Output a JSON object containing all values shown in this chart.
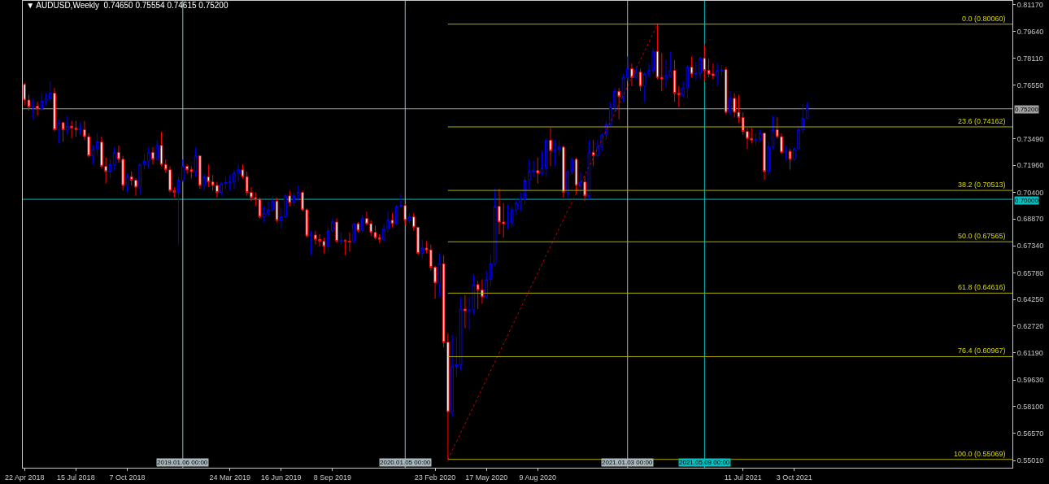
{
  "chart_data": {
    "type": "candlestick",
    "title": "▼ AUDUSD,Weekly  0.74650 0.75554 0.74615 0.75200",
    "x": [
      "2018-04-22",
      "2018-04-29",
      "2018-05-06",
      "2018-05-13",
      "2018-05-20",
      "2018-05-27",
      "2018-06-03",
      "2018-06-10",
      "2018-06-17",
      "2018-06-24",
      "2018-07-01",
      "2018-07-08",
      "2018-07-15",
      "2018-07-22",
      "2018-07-29",
      "2018-08-05",
      "2018-08-12",
      "2018-08-19",
      "2018-08-26",
      "2018-09-02",
      "2018-09-09",
      "2018-09-16",
      "2018-09-23",
      "2018-09-30",
      "2018-10-07",
      "2018-10-14",
      "2018-10-21",
      "2018-10-28",
      "2018-11-04",
      "2018-11-11",
      "2018-11-18",
      "2018-11-25",
      "2018-12-02",
      "2018-12-09",
      "2018-12-16",
      "2018-12-23",
      "2018-12-30",
      "2019-01-06",
      "2019-01-13",
      "2019-01-20",
      "2019-01-27",
      "2019-02-03",
      "2019-02-10",
      "2019-02-17",
      "2019-02-24",
      "2019-03-03",
      "2019-03-10",
      "2019-03-17",
      "2019-03-24",
      "2019-03-31",
      "2019-04-07",
      "2019-04-14",
      "2019-04-21",
      "2019-04-28",
      "2019-05-05",
      "2019-05-12",
      "2019-05-19",
      "2019-05-26",
      "2019-06-02",
      "2019-06-09",
      "2019-06-16",
      "2019-06-23",
      "2019-06-30",
      "2019-07-07",
      "2019-07-14",
      "2019-07-21",
      "2019-07-28",
      "2019-08-04",
      "2019-08-11",
      "2019-08-18",
      "2019-08-25",
      "2019-09-01",
      "2019-09-08",
      "2019-09-15",
      "2019-09-22",
      "2019-09-29",
      "2019-10-06",
      "2019-10-13",
      "2019-10-20",
      "2019-10-27",
      "2019-11-03",
      "2019-11-10",
      "2019-11-17",
      "2019-11-24",
      "2019-12-01",
      "2019-12-08",
      "2019-12-15",
      "2019-12-22",
      "2019-12-29",
      "2020-01-05",
      "2020-01-12",
      "2020-01-19",
      "2020-01-26",
      "2020-02-02",
      "2020-02-09",
      "2020-02-16",
      "2020-02-23",
      "2020-03-01",
      "2020-03-08",
      "2020-03-15",
      "2020-03-22",
      "2020-03-29",
      "2020-04-05",
      "2020-04-12",
      "2020-04-19",
      "2020-04-26",
      "2020-05-03",
      "2020-05-10",
      "2020-05-17",
      "2020-05-24",
      "2020-05-31",
      "2020-06-07",
      "2020-06-14",
      "2020-06-21",
      "2020-06-28",
      "2020-07-05",
      "2020-07-12",
      "2020-07-19",
      "2020-07-26",
      "2020-08-02",
      "2020-08-09",
      "2020-08-16",
      "2020-08-23",
      "2020-08-30",
      "2020-09-06",
      "2020-09-13",
      "2020-09-20",
      "2020-09-27",
      "2020-10-04",
      "2020-10-11",
      "2020-10-18",
      "2020-10-25",
      "2020-11-01",
      "2020-11-08",
      "2020-11-15",
      "2020-11-22",
      "2020-11-29",
      "2020-12-06",
      "2020-12-13",
      "2020-12-20",
      "2020-12-27",
      "2021-01-03",
      "2021-01-10",
      "2021-01-17",
      "2021-01-24",
      "2021-01-31",
      "2021-02-07",
      "2021-02-14",
      "2021-02-21",
      "2021-02-28",
      "2021-03-07",
      "2021-03-14",
      "2021-03-21",
      "2021-03-28",
      "2021-04-04",
      "2021-04-11",
      "2021-04-18",
      "2021-04-25",
      "2021-05-02",
      "2021-05-09",
      "2021-05-16",
      "2021-05-23",
      "2021-05-30",
      "2021-06-06",
      "2021-06-13",
      "2021-06-20",
      "2021-06-27",
      "2021-07-04",
      "2021-07-11",
      "2021-07-18",
      "2021-07-25",
      "2021-08-01",
      "2021-08-08",
      "2021-08-15",
      "2021-08-22",
      "2021-08-29",
      "2021-09-05",
      "2021-09-12",
      "2021-09-19",
      "2021-09-26",
      "2021-10-03",
      "2021-10-10",
      "2021-10-17",
      "2021-10-24"
    ],
    "ohlc": [
      [
        0.766,
        0.767,
        0.754,
        0.757
      ],
      [
        0.757,
        0.76,
        0.751,
        0.753
      ],
      [
        0.753,
        0.758,
        0.746,
        0.7535
      ],
      [
        0.7535,
        0.756,
        0.748,
        0.752
      ],
      [
        0.752,
        0.761,
        0.751,
        0.7565
      ],
      [
        0.7565,
        0.761,
        0.754,
        0.758
      ],
      [
        0.758,
        0.7677,
        0.756,
        0.761
      ],
      [
        0.761,
        0.764,
        0.739,
        0.74
      ],
      [
        0.74,
        0.746,
        0.732,
        0.744
      ],
      [
        0.744,
        0.744,
        0.733,
        0.74
      ],
      [
        0.74,
        0.748,
        0.737,
        0.742
      ],
      [
        0.742,
        0.745,
        0.735,
        0.741
      ],
      [
        0.741,
        0.745,
        0.736,
        0.74
      ],
      [
        0.74,
        0.744,
        0.737,
        0.7405
      ],
      [
        0.74,
        0.745,
        0.734,
        0.736
      ],
      [
        0.736,
        0.738,
        0.724,
        0.725
      ],
      [
        0.725,
        0.731,
        0.72,
        0.729
      ],
      [
        0.729,
        0.738,
        0.725,
        0.733
      ],
      [
        0.733,
        0.736,
        0.718,
        0.719
      ],
      [
        0.719,
        0.724,
        0.709,
        0.716
      ],
      [
        0.716,
        0.723,
        0.712,
        0.72
      ],
      [
        0.72,
        0.73,
        0.717,
        0.727
      ],
      [
        0.727,
        0.731,
        0.721,
        0.723
      ],
      [
        0.723,
        0.725,
        0.705,
        0.708
      ],
      [
        0.708,
        0.715,
        0.704,
        0.713
      ],
      [
        0.713,
        0.716,
        0.708,
        0.711
      ],
      [
        0.711,
        0.712,
        0.702,
        0.707
      ],
      [
        0.707,
        0.72,
        0.703,
        0.72
      ],
      [
        0.72,
        0.726,
        0.717,
        0.722
      ],
      [
        0.722,
        0.73,
        0.718,
        0.727
      ],
      [
        0.727,
        0.73,
        0.72,
        0.723
      ],
      [
        0.723,
        0.734,
        0.722,
        0.731
      ],
      [
        0.731,
        0.739,
        0.719,
        0.72
      ],
      [
        0.72,
        0.723,
        0.715,
        0.717
      ],
      [
        0.717,
        0.719,
        0.704,
        0.705
      ],
      [
        0.705,
        0.707,
        0.701,
        0.704
      ],
      [
        0.704,
        0.713,
        0.674,
        0.711
      ],
      [
        0.711,
        0.723,
        0.71,
        0.719
      ],
      [
        0.719,
        0.72,
        0.715,
        0.717
      ],
      [
        0.717,
        0.719,
        0.712,
        0.716
      ],
      [
        0.716,
        0.73,
        0.713,
        0.725
      ],
      [
        0.725,
        0.725,
        0.706,
        0.708
      ],
      [
        0.708,
        0.715,
        0.705,
        0.713
      ],
      [
        0.713,
        0.72,
        0.707,
        0.71
      ],
      [
        0.71,
        0.714,
        0.705,
        0.708
      ],
      [
        0.708,
        0.71,
        0.701,
        0.704
      ],
      [
        0.704,
        0.71,
        0.702,
        0.709
      ],
      [
        0.709,
        0.713,
        0.706,
        0.7095
      ],
      [
        0.7095,
        0.714,
        0.705,
        0.71
      ],
      [
        0.71,
        0.717,
        0.706,
        0.715
      ],
      [
        0.715,
        0.72,
        0.71,
        0.717
      ],
      [
        0.717,
        0.72,
        0.712,
        0.713
      ],
      [
        0.713,
        0.716,
        0.702,
        0.704
      ],
      [
        0.704,
        0.707,
        0.699,
        0.701
      ],
      [
        0.701,
        0.704,
        0.696,
        0.7
      ],
      [
        0.7,
        0.701,
        0.689,
        0.69
      ],
      [
        0.69,
        0.696,
        0.687,
        0.692
      ],
      [
        0.692,
        0.699,
        0.69,
        0.694
      ],
      [
        0.694,
        0.702,
        0.693,
        0.699
      ],
      [
        0.699,
        0.701,
        0.687,
        0.688
      ],
      [
        0.688,
        0.695,
        0.683,
        0.69
      ],
      [
        0.69,
        0.703,
        0.69,
        0.702
      ],
      [
        0.702,
        0.705,
        0.696,
        0.698
      ],
      [
        0.698,
        0.704,
        0.696,
        0.702
      ],
      [
        0.702,
        0.708,
        0.699,
        0.704
      ],
      [
        0.704,
        0.705,
        0.693,
        0.694
      ],
      [
        0.694,
        0.695,
        0.678,
        0.679
      ],
      [
        0.679,
        0.682,
        0.668,
        0.6795
      ],
      [
        0.6795,
        0.682,
        0.674,
        0.677
      ],
      [
        0.677,
        0.68,
        0.673,
        0.676
      ],
      [
        0.676,
        0.678,
        0.669,
        0.673
      ],
      [
        0.673,
        0.684,
        0.67,
        0.682
      ],
      [
        0.682,
        0.689,
        0.681,
        0.687
      ],
      [
        0.687,
        0.689,
        0.675,
        0.676
      ],
      [
        0.676,
        0.681,
        0.674,
        0.6765
      ],
      [
        0.6765,
        0.677,
        0.668,
        0.676
      ],
      [
        0.676,
        0.681,
        0.67,
        0.6755
      ],
      [
        0.6755,
        0.686,
        0.675,
        0.686
      ],
      [
        0.686,
        0.687,
        0.681,
        0.682
      ],
      [
        0.682,
        0.691,
        0.681,
        0.689
      ],
      [
        0.689,
        0.693,
        0.685,
        0.686
      ],
      [
        0.686,
        0.688,
        0.679,
        0.681
      ],
      [
        0.681,
        0.685,
        0.677,
        0.678
      ],
      [
        0.678,
        0.68,
        0.675,
        0.677
      ],
      [
        0.677,
        0.686,
        0.676,
        0.683
      ],
      [
        0.683,
        0.693,
        0.681,
        0.688
      ],
      [
        0.688,
        0.692,
        0.684,
        0.686
      ],
      [
        0.686,
        0.697,
        0.685,
        0.696
      ],
      [
        0.696,
        0.703,
        0.695,
        0.6965
      ],
      [
        0.6965,
        0.697,
        0.685,
        0.688
      ],
      [
        0.688,
        0.692,
        0.686,
        0.69
      ],
      [
        0.69,
        0.692,
        0.682,
        0.684
      ],
      [
        0.684,
        0.684,
        0.668,
        0.669
      ],
      [
        0.669,
        0.677,
        0.666,
        0.672
      ],
      [
        0.672,
        0.676,
        0.669,
        0.671
      ],
      [
        0.671,
        0.674,
        0.659,
        0.661
      ],
      [
        0.661,
        0.662,
        0.643,
        0.652
      ],
      [
        0.652,
        0.669,
        0.644,
        0.663
      ],
      [
        0.663,
        0.668,
        0.615,
        0.618
      ],
      [
        0.618,
        0.623,
        0.5507,
        0.578
      ],
      [
        0.578,
        0.622,
        0.575,
        0.604
      ],
      [
        0.604,
        0.621,
        0.598,
        0.605
      ],
      [
        0.605,
        0.644,
        0.602,
        0.637
      ],
      [
        0.637,
        0.645,
        0.626,
        0.636
      ],
      [
        0.636,
        0.644,
        0.625,
        0.6365
      ],
      [
        0.6365,
        0.657,
        0.634,
        0.651
      ],
      [
        0.651,
        0.653,
        0.637,
        0.648
      ],
      [
        0.648,
        0.654,
        0.64,
        0.644
      ],
      [
        0.644,
        0.659,
        0.643,
        0.654
      ],
      [
        0.654,
        0.668,
        0.65,
        0.663
      ],
      [
        0.663,
        0.706,
        0.662,
        0.696
      ],
      [
        0.696,
        0.706,
        0.68,
        0.687
      ],
      [
        0.687,
        0.698,
        0.678,
        0.686
      ],
      [
        0.686,
        0.697,
        0.683,
        0.6865
      ],
      [
        0.6865,
        0.696,
        0.684,
        0.694
      ],
      [
        0.694,
        0.7,
        0.691,
        0.698
      ],
      [
        0.698,
        0.704,
        0.693,
        0.7
      ],
      [
        0.7,
        0.713,
        0.697,
        0.711
      ],
      [
        0.711,
        0.723,
        0.706,
        0.716
      ],
      [
        0.716,
        0.722,
        0.713,
        0.7165
      ],
      [
        0.7165,
        0.724,
        0.709,
        0.715
      ],
      [
        0.715,
        0.728,
        0.714,
        0.718
      ],
      [
        0.718,
        0.735,
        0.713,
        0.734
      ],
      [
        0.734,
        0.741,
        0.719,
        0.728
      ],
      [
        0.728,
        0.734,
        0.719,
        0.7285
      ],
      [
        0.7285,
        0.734,
        0.725,
        0.73
      ],
      [
        0.73,
        0.731,
        0.701,
        0.704
      ],
      [
        0.704,
        0.717,
        0.701,
        0.716
      ],
      [
        0.716,
        0.724,
        0.714,
        0.723
      ],
      [
        0.723,
        0.724,
        0.703,
        0.708
      ],
      [
        0.708,
        0.716,
        0.703,
        0.71
      ],
      [
        0.71,
        0.713,
        0.699,
        0.702
      ],
      [
        0.702,
        0.734,
        0.7,
        0.727
      ],
      [
        0.727,
        0.734,
        0.719,
        0.725
      ],
      [
        0.725,
        0.734,
        0.724,
        0.73
      ],
      [
        0.73,
        0.738,
        0.728,
        0.737
      ],
      [
        0.737,
        0.745,
        0.734,
        0.743
      ],
      [
        0.743,
        0.756,
        0.742,
        0.753
      ],
      [
        0.753,
        0.764,
        0.75,
        0.762
      ],
      [
        0.762,
        0.764,
        0.746,
        0.759
      ],
      [
        0.759,
        0.772,
        0.756,
        0.77
      ],
      [
        0.77,
        0.782,
        0.768,
        0.775
      ],
      [
        0.775,
        0.778,
        0.765,
        0.77
      ],
      [
        0.77,
        0.776,
        0.769,
        0.773
      ],
      [
        0.773,
        0.775,
        0.762,
        0.765
      ],
      [
        0.765,
        0.773,
        0.756,
        0.772
      ],
      [
        0.772,
        0.778,
        0.77,
        0.774
      ],
      [
        0.774,
        0.787,
        0.772,
        0.785
      ],
      [
        0.785,
        0.8006,
        0.769,
        0.77
      ],
      [
        0.77,
        0.784,
        0.762,
        0.769
      ],
      [
        0.769,
        0.78,
        0.764,
        0.771
      ],
      [
        0.771,
        0.785,
        0.77,
        0.774
      ],
      [
        0.774,
        0.78,
        0.756,
        0.761
      ],
      [
        0.761,
        0.765,
        0.753,
        0.76
      ],
      [
        0.76,
        0.768,
        0.759,
        0.764
      ],
      [
        0.764,
        0.777,
        0.758,
        0.776
      ],
      [
        0.776,
        0.782,
        0.77,
        0.772
      ],
      [
        0.772,
        0.779,
        0.768,
        0.7725
      ],
      [
        0.7725,
        0.782,
        0.769,
        0.781
      ],
      [
        0.781,
        0.789,
        0.768,
        0.774
      ],
      [
        0.774,
        0.781,
        0.77,
        0.772
      ],
      [
        0.772,
        0.778,
        0.769,
        0.771
      ],
      [
        0.771,
        0.778,
        0.765,
        0.774
      ],
      [
        0.774,
        0.777,
        0.771,
        0.7745
      ],
      [
        0.7745,
        0.776,
        0.749,
        0.75
      ],
      [
        0.75,
        0.762,
        0.748,
        0.758
      ],
      [
        0.758,
        0.761,
        0.747,
        0.75
      ],
      [
        0.75,
        0.76,
        0.744,
        0.747
      ],
      [
        0.747,
        0.75,
        0.737,
        0.739
      ],
      [
        0.739,
        0.741,
        0.729,
        0.735
      ],
      [
        0.735,
        0.741,
        0.732,
        0.734
      ],
      [
        0.734,
        0.738,
        0.731,
        0.7345
      ],
      [
        0.7345,
        0.74,
        0.733,
        0.738
      ],
      [
        0.738,
        0.738,
        0.711,
        0.716
      ],
      [
        0.716,
        0.733,
        0.714,
        0.73
      ],
      [
        0.73,
        0.748,
        0.729,
        0.74
      ],
      [
        0.74,
        0.747,
        0.735,
        0.736
      ],
      [
        0.736,
        0.738,
        0.726,
        0.727
      ],
      [
        0.727,
        0.731,
        0.722,
        0.7275
      ],
      [
        0.7275,
        0.729,
        0.717,
        0.723
      ],
      [
        0.723,
        0.73,
        0.722,
        0.729
      ],
      [
        0.729,
        0.742,
        0.729,
        0.74
      ],
      [
        0.74,
        0.755,
        0.738,
        0.7465
      ],
      [
        0.7465,
        0.75554,
        0.74615,
        0.752
      ]
    ],
    "series": [
      {
        "type": "line",
        "x": [
          "2020-03-15",
          "2021-02-21"
        ],
        "values": [
          0.55069,
          0.8006
        ],
        "color": "#c00000",
        "line_style": "dotted"
      },
      {
        "type": "line",
        "name": "0.0 (0.80060)",
        "x": [
          "2020-03-15",
          "2022-09-25"
        ],
        "values": [
          0.8006,
          0.8006
        ],
        "color": "#b0b000"
      },
      {
        "type": "line",
        "name": "23.6 (0.74162)",
        "x": [
          "2020-03-15",
          "2022-09-25"
        ],
        "values": [
          0.74162,
          0.74162
        ],
        "color": "#b0b000"
      },
      {
        "type": "line",
        "name": "38.2 (0.70513)",
        "x": [
          "2020-03-15",
          "2022-09-25"
        ],
        "values": [
          0.70513,
          0.70513
        ],
        "color": "#b0b000"
      },
      {
        "type": "line",
        "name": "50.0 (0.67565)",
        "x": [
          "2020-03-15",
          "2022-09-25"
        ],
        "values": [
          0.67565,
          0.67565
        ],
        "color": "#b0b000"
      },
      {
        "type": "line",
        "name": "61.8 (0.64616)",
        "x": [
          "2020-03-15",
          "2022-09-25"
        ],
        "values": [
          0.64616,
          0.64616
        ],
        "color": "#b0b000"
      },
      {
        "type": "line",
        "name": "76.4 (0.60967)",
        "x": [
          "2020-03-15",
          "2022-09-25"
        ],
        "values": [
          0.60967,
          0.60967
        ],
        "color": "#b0b000"
      },
      {
        "type": "line",
        "name": "100.0 (0.55069)",
        "x": [
          "2020-03-15",
          "2022-09-25"
        ],
        "values": [
          0.55069,
          0.55069
        ],
        "color": "#b0b000"
      }
    ],
    "xlim": [
      "2018-04-19",
      "2022-09-25"
    ],
    "xticks": [
      {
        "value": "2018-04-22",
        "label": "22 Apr 2018"
      },
      {
        "value": "2018-07-15",
        "label": "15 Jul 2018"
      },
      {
        "value": "2018-10-07",
        "label": "7 Oct 2018"
      },
      {
        "value": "2019-03-24",
        "label": "24 Mar 2019"
      },
      {
        "value": "2019-06-16",
        "label": "16 Jun 2019"
      },
      {
        "value": "2019-09-08",
        "label": "8 Sep 2019"
      },
      {
        "value": "2020-02-23",
        "label": "23 Feb 2020"
      },
      {
        "value": "2020-05-17",
        "label": "17 May 2020"
      },
      {
        "value": "2020-08-09",
        "label": "9 Aug 2020"
      },
      {
        "value": "2021-07-11",
        "label": "11 Jul 2021"
      },
      {
        "value": "2021-10-03",
        "label": "3 Oct 2021"
      }
    ],
    "ylim": [
      0.5459,
      0.814
    ],
    "yticks": [
      {
        "value": 0.8117,
        "label": "0.81170"
      },
      {
        "value": 0.7964,
        "label": "0.79640"
      },
      {
        "value": 0.7811,
        "label": "0.78110"
      },
      {
        "value": 0.7655,
        "label": "0.76550"
      },
      {
        "value": 0.7349,
        "label": "0.73490"
      },
      {
        "value": 0.7196,
        "label": "0.71960"
      },
      {
        "value": 0.704,
        "label": "0.70400"
      },
      {
        "value": 0.6887,
        "label": "0.68870"
      },
      {
        "value": 0.6734,
        "label": "0.67340"
      },
      {
        "value": 0.6578,
        "label": "0.65780"
      },
      {
        "value": 0.6425,
        "label": "0.64250"
      },
      {
        "value": 0.6272,
        "label": "0.62720"
      },
      {
        "value": 0.6119,
        "label": "0.61190"
      },
      {
        "value": 0.5963,
        "label": "0.59630"
      },
      {
        "value": 0.581,
        "label": "0.58100"
      },
      {
        "value": 0.5657,
        "label": "0.56570"
      },
      {
        "value": 0.5501,
        "label": "0.55010"
      }
    ],
    "ref_lines": [
      {
        "axis": "y",
        "value": 0.752,
        "label": "0.75200",
        "color": "#a0a0a0"
      },
      {
        "axis": "y",
        "value": 0.7,
        "label": "0.70000",
        "color": "#00c0c0"
      },
      {
        "axis": "x",
        "value": "2019-01-06",
        "label": "2019.01.06 00:00",
        "color": "#a8b8bc"
      },
      {
        "axis": "x",
        "value": "2020-01-05",
        "label": "2020.01.05 00:00",
        "color": "#a8b8bc"
      },
      {
        "axis": "x",
        "value": "2021-01-03",
        "label": "2021.01.03 00:00",
        "color": "#a8b8bc"
      },
      {
        "axis": "x",
        "value": "2021-05-09",
        "label": "2021.05.09 00:00",
        "color": "#00c0c0"
      }
    ],
    "grid": false,
    "legend": false
  }
}
